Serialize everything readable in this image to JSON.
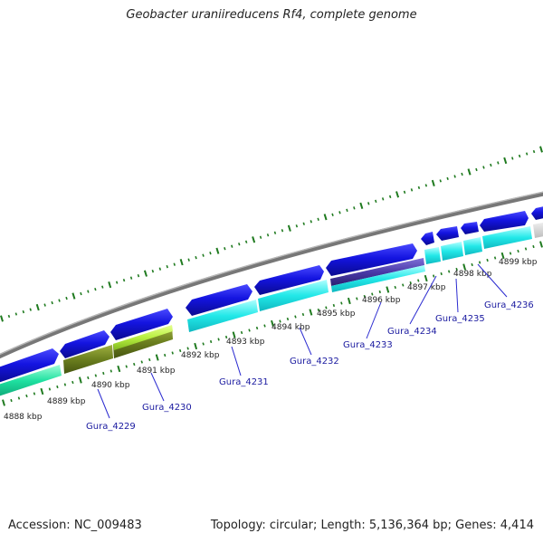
{
  "title": "Geobacter uraniireducens Rf4, complete genome",
  "footer": {
    "accession": "Accession: NC_009483",
    "summary": "Topology: circular; Length: 5,136,364 bp; Genes: 4,414"
  },
  "scale_labels": [
    "4888 kbp",
    "4889 kbp",
    "4890 kbp",
    "4891 kbp",
    "4892 kbp",
    "4893 kbp",
    "4894 kbp",
    "4895 kbp",
    "4896 kbp",
    "4897 kbp",
    "4898 kbp",
    "4899 kbp"
  ],
  "gene_labels": [
    "Gura_4229",
    "Gura_4230",
    "Gura_4231",
    "Gura_4232",
    "Gura_4233",
    "Gura_4234",
    "Gura_4235",
    "Gura_4236"
  ],
  "colors": {
    "forward_gene": "#1212d8",
    "cog_cyan": "#22e6e6",
    "cog_olive": "#6b7f1e",
    "cog_lime": "#b8f040",
    "cog_mint": "#1ee0a0",
    "cog_purple": "#4a3aa8",
    "backbone": "#8c8c8c",
    "tick_green": "#1f7a1f"
  }
}
